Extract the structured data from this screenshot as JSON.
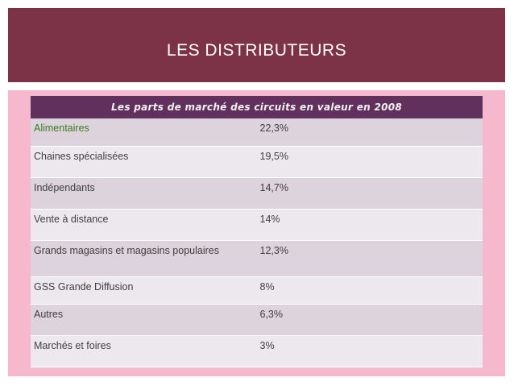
{
  "title": "LES DISTRIBUTEURS",
  "table": {
    "header": "Les parts de marché des circuits en valeur en 2008",
    "rows": [
      {
        "name": "Alimentaires",
        "value": "22,3%"
      },
      {
        "name": "Chaines spécialisées",
        "value": "19,5%"
      },
      {
        "name": "Indépendants",
        "value": "14,7%"
      },
      {
        "name": "Vente à distance",
        "value": "14%"
      },
      {
        "name": "Grands magasins et magasins populaires",
        "value": "12,3%"
      },
      {
        "name": "GSS Grande Diffusion",
        "value": "8%"
      },
      {
        "name": "Autres",
        "value": "6,3%"
      },
      {
        "name": "Marchés et foires",
        "value": "3%"
      }
    ]
  },
  "colors": {
    "title_bar": "#7d3347",
    "content_background": "#f5b8cd",
    "table_header": "#62305d",
    "row_odd": "#dcd3dc",
    "row_even": "#ede8ee",
    "highlight_text": "#3d7a1f"
  }
}
